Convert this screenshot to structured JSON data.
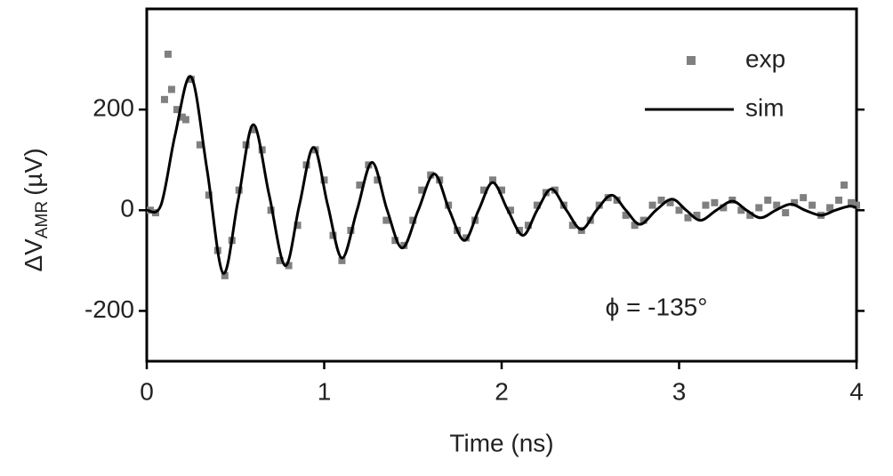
{
  "chart_data": {
    "type": "scatter-line",
    "x_label": "Time (ns)",
    "y_label": {
      "main": "ΔV",
      "sub": "AMR",
      "unit": "(µV)"
    },
    "annotation": "ϕ = -135°",
    "xlim": [
      0,
      4
    ],
    "xticks": [
      0,
      1,
      2,
      3,
      4
    ],
    "ylim": [
      -300,
      400
    ],
    "yticks": [
      -200,
      0,
      200
    ],
    "legend": "upper right",
    "series": [
      {
        "name": "exp",
        "kind": "markers",
        "color": "#808080",
        "x": [
          0.02,
          0.05,
          0.1,
          0.12,
          0.14,
          0.17,
          0.2,
          0.22,
          0.25,
          0.3,
          0.35,
          0.4,
          0.44,
          0.48,
          0.52,
          0.56,
          0.6,
          0.65,
          0.7,
          0.75,
          0.8,
          0.85,
          0.9,
          0.95,
          1.0,
          1.05,
          1.1,
          1.15,
          1.2,
          1.25,
          1.3,
          1.35,
          1.4,
          1.45,
          1.5,
          1.55,
          1.6,
          1.65,
          1.7,
          1.75,
          1.8,
          1.85,
          1.9,
          1.95,
          2.0,
          2.05,
          2.1,
          2.15,
          2.2,
          2.25,
          2.3,
          2.35,
          2.4,
          2.45,
          2.5,
          2.55,
          2.6,
          2.65,
          2.7,
          2.75,
          2.8,
          2.85,
          2.9,
          2.95,
          3.0,
          3.05,
          3.1,
          3.15,
          3.2,
          3.25,
          3.3,
          3.35,
          3.4,
          3.45,
          3.5,
          3.55,
          3.6,
          3.65,
          3.7,
          3.75,
          3.8,
          3.85,
          3.9,
          3.93,
          3.97,
          4.0
        ],
        "values": [
          0,
          -5,
          220,
          310,
          240,
          200,
          185,
          180,
          260,
          130,
          30,
          -80,
          -130,
          -60,
          40,
          130,
          160,
          120,
          0,
          -100,
          -110,
          -30,
          90,
          120,
          60,
          -50,
          -100,
          -40,
          50,
          90,
          60,
          -20,
          -60,
          -70,
          -20,
          40,
          70,
          60,
          10,
          -40,
          -55,
          -20,
          40,
          60,
          40,
          0,
          -40,
          -30,
          10,
          35,
          40,
          10,
          -30,
          -40,
          -20,
          10,
          25,
          20,
          -10,
          -30,
          -20,
          10,
          20,
          15,
          0,
          -15,
          -10,
          10,
          15,
          5,
          20,
          0,
          -10,
          5,
          20,
          10,
          -5,
          15,
          25,
          10,
          -10,
          5,
          20,
          50,
          15,
          10
        ]
      },
      {
        "name": "sim",
        "kind": "line",
        "color": "#000000",
        "x": [
          0,
          0.08,
          0.16,
          0.25,
          0.34,
          0.43,
          0.515,
          0.6,
          0.69,
          0.78,
          0.86,
          0.94,
          1.02,
          1.1,
          1.185,
          1.27,
          1.355,
          1.44,
          1.53,
          1.62,
          1.705,
          1.79,
          1.87,
          1.95,
          2.035,
          2.12,
          2.2,
          2.28,
          2.365,
          2.45,
          2.535,
          2.62,
          2.7,
          2.78,
          2.87,
          2.96,
          3.04,
          3.12,
          3.21,
          3.3,
          3.38,
          3.46,
          3.545,
          3.63,
          3.71,
          3.8,
          3.88,
          3.96,
          4.0
        ],
        "values": [
          0,
          10,
          150,
          265,
          80,
          -125,
          20,
          170,
          30,
          -110,
          10,
          125,
          10,
          -95,
          0,
          95,
          0,
          -75,
          0,
          72,
          0,
          -60,
          0,
          55,
          0,
          -50,
          0,
          42,
          0,
          -38,
          0,
          30,
          0,
          -28,
          0,
          22,
          0,
          -20,
          0,
          18,
          0,
          -15,
          0,
          12,
          0,
          -10,
          0,
          8,
          5
        ]
      }
    ]
  }
}
